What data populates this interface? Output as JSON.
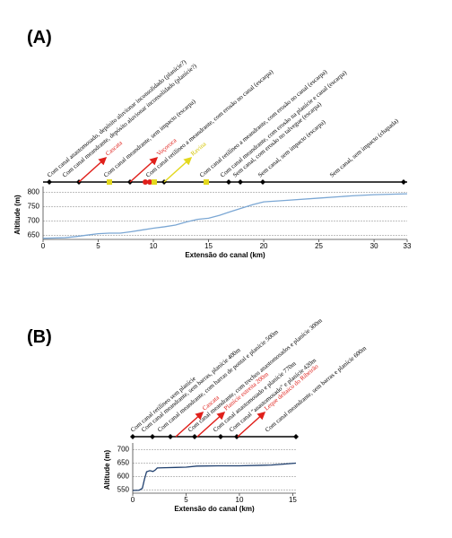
{
  "chart_data": [
    {
      "type": "line",
      "panel_label": "(A)",
      "x_label": "Extensão do canal (km)",
      "y_label": "Altitude  (m)",
      "xlim": [
        0,
        33
      ],
      "xticks": [
        0,
        5,
        10,
        15,
        20,
        25,
        30,
        33
      ],
      "ylim": [
        636,
        808
      ],
      "yticks": [
        650,
        700,
        750,
        800
      ],
      "grid": true,
      "series": [
        {
          "color": "#7ba7d4",
          "x": [
            0,
            2,
            3,
            4,
            5,
            6,
            7,
            8,
            9,
            10,
            11,
            12,
            13,
            14,
            15,
            16,
            17,
            18,
            19,
            20,
            22,
            25,
            28,
            30,
            33
          ],
          "values": [
            640,
            642,
            646,
            651,
            656,
            658,
            658,
            663,
            669,
            675,
            680,
            686,
            697,
            706,
            710,
            720,
            733,
            745,
            757,
            767,
            772,
            780,
            788,
            792,
            795
          ]
        }
      ],
      "annotations": [
        {
          "text": "Com canal anastomosado, depósito aluvionar inconsolidado (planície?)",
          "color": "#000000",
          "arrow": false
        },
        {
          "text": "Com canal meandrante, depósito aluvionar inconsolidado (planície?)",
          "color": "#000000",
          "arrow": false
        },
        {
          "text": "Cascata",
          "color": "#e0201b",
          "arrow": true
        },
        {
          "text": "Com canal meandrante, sem impacto (escarpa)",
          "color": "#000000",
          "arrow": false
        },
        {
          "text": "Voçoroca",
          "color": "#e0201b",
          "arrow": true
        },
        {
          "text": "Com canal retilíneo a meandrante, com erosão no canal (escarpa)",
          "color": "#000000",
          "arrow": false
        },
        {
          "text": "Ravina",
          "color": "#e3d81f",
          "arrow": true
        },
        {
          "text": "Com canal retilíneo a meandrante, com erosão no canal (escarpa)",
          "color": "#000000",
          "arrow": false
        },
        {
          "text": "Com canal meandrante, com erosão na planície e canal (escarpa)",
          "color": "#000000",
          "arrow": false
        },
        {
          "text": "Sem canal, com erosão no talvegue (escarpa)",
          "color": "#000000",
          "arrow": false
        },
        {
          "text": "Sem canal, sem impacto (escarpa)",
          "color": "#000000",
          "arrow": false
        },
        {
          "text": "Sem canal, sem impacto (chapada)",
          "color": "#000000",
          "arrow": false
        }
      ]
    },
    {
      "type": "line",
      "panel_label": "(B)",
      "x_label": "Extensão do canal (km)",
      "y_label": "Altitude  (m)",
      "xlim": [
        0,
        15.3
      ],
      "xticks": [
        0,
        5,
        10,
        15
      ],
      "ylim": [
        538,
        712
      ],
      "yticks": [
        550,
        600,
        650,
        700
      ],
      "grid": true,
      "series": [
        {
          "color": "#1f3f6e",
          "x": [
            0,
            0.6,
            0.9,
            1.1,
            1.3,
            1.6,
            1.9,
            2.1,
            2.3,
            3,
            4,
            5,
            6,
            8,
            10,
            12,
            13,
            14,
            15.3
          ],
          "values": [
            548,
            549,
            556,
            590,
            618,
            622,
            619,
            624,
            632,
            633,
            634,
            635,
            639,
            640,
            640,
            642,
            643,
            646,
            650
          ]
        }
      ],
      "annotations": [
        {
          "text": "Com canal retilíneo sem planície",
          "color": "#000000",
          "arrow": false
        },
        {
          "text": "Com canal meandrante, sem barras, planície 400m",
          "color": "#000000",
          "arrow": false
        },
        {
          "text": "Com canal meandrante, com barras de pontal e planície 500m",
          "color": "#000000",
          "arrow": false
        },
        {
          "text": "Cascata",
          "color": "#e0201b",
          "arrow": true
        },
        {
          "text": "Com canal meandrante, com trechos anastomosados e planície 300m",
          "color": "#000000",
          "arrow": false
        },
        {
          "text": "Planície estreita 200m",
          "color": "#e0201b",
          "arrow": true
        },
        {
          "text": "Com canal anastomosado e planície 770m",
          "color": "#000000",
          "arrow": false
        },
        {
          "text": "Com canal \"anastomosado\" e planície 420m",
          "color": "#000000",
          "arrow": false
        },
        {
          "text": "Leque deltaico do Ribeirão",
          "color": "#e0201b",
          "arrow": true
        },
        {
          "text": "Com canal meandrante, sem barras e planície 600m",
          "color": "#000000",
          "arrow": false
        }
      ]
    }
  ]
}
